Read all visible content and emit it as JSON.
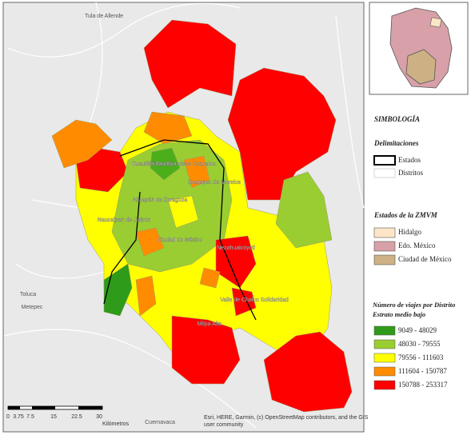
{
  "places": [
    "Tula de Allende",
    "Cuautitlán Izcalli",
    "San Francisco Coacalco",
    "Ecatepec de Morelos",
    "Atizapán de Zaragoza",
    "Naucalpan de Juárez",
    "Ciudad de México",
    "Nezahualcóyotl",
    "Valle de Chalco Solidaridad",
    "Milpa Alta",
    "Toluca",
    "Metepec",
    "Cuernavaca"
  ],
  "legend": {
    "title": "SIMBOLOGÍA",
    "boundaries": {
      "title": "Delimitaciones",
      "items": [
        "Estados",
        "Distritos"
      ]
    },
    "states": {
      "title": "Estados de la ZMVM",
      "items": [
        "Hidalgo",
        "Edo. México",
        "Ciudad de México"
      ]
    },
    "trips": {
      "title": [
        "Número de viajes por Distrito",
        "Estrato medio bajo"
      ],
      "items": [
        "9049 - 48029",
        "48030 - 79555",
        "79556 - 111603",
        "111604 - 150787",
        "150788 - 253317"
      ]
    }
  },
  "scale": {
    "ticks": [
      0,
      3.75,
      7.5,
      15,
      22.5,
      30
    ],
    "unit": "Kilómetros"
  },
  "attribution": [
    "Esri, HERE, Garmin, (c) OpenStreetMap contributors, and the GIS",
    "user community"
  ]
}
